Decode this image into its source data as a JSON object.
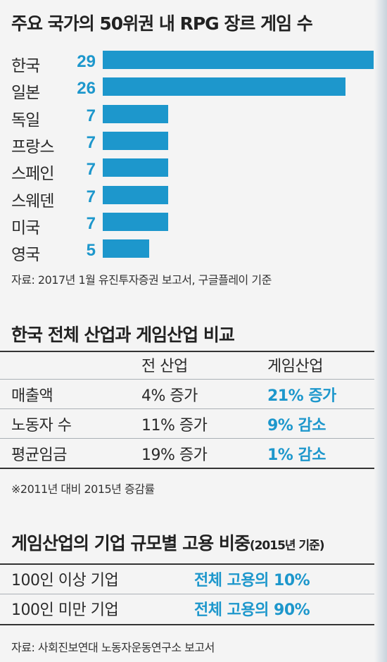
{
  "section1": {
    "title": "주요 국가의 50위권 내 RPG 장르 게임 수",
    "source": "자료: 2017년 1월 유진투자증권 보고서, 구글플레이 기준"
  },
  "chart_data": {
    "type": "bar",
    "orientation": "horizontal",
    "title": "주요 국가의 50위권 내 RPG 장르 게임 수",
    "categories": [
      "한국",
      "일본",
      "독일",
      "프랑스",
      "스페인",
      "스웨덴",
      "미국",
      "영국"
    ],
    "values": [
      29,
      26,
      7,
      7,
      7,
      7,
      7,
      5
    ],
    "value_labels": [
      "29",
      "26",
      "7",
      "7",
      "7",
      "7",
      "7",
      "5"
    ],
    "xlim": [
      0,
      29
    ],
    "grid": false,
    "bar_color": "#1d97cc"
  },
  "section2": {
    "title": "한국 전체 산업과 게임산업 비교",
    "headers": [
      "전 산업",
      "게임산업"
    ],
    "rows": [
      {
        "label": "매출액",
        "all": "4% 증가",
        "game": "21% 증가"
      },
      {
        "label": "노동자 수",
        "all": "11% 증가",
        "game": "9% 감소"
      },
      {
        "label": "평균임금",
        "all": "19% 증가",
        "game": "1% 감소"
      }
    ],
    "note": "※2011년 대비 2015년 증감률"
  },
  "section3": {
    "title": "게임산업의 기업 규모별 고용 비중",
    "subtitle": "(2015년 기준)",
    "rows": [
      {
        "label": "100인 이상 기업",
        "value": "전체 고용의 10%"
      },
      {
        "label": "100인 미만 기업",
        "value": "전체 고용의 90%"
      }
    ],
    "source": "자료: 사회진보연대 노동자운동연구소 보고서"
  },
  "colors": {
    "accent": "#1d97cc",
    "text": "#2a2a2a",
    "background": "#f4f4f4"
  }
}
